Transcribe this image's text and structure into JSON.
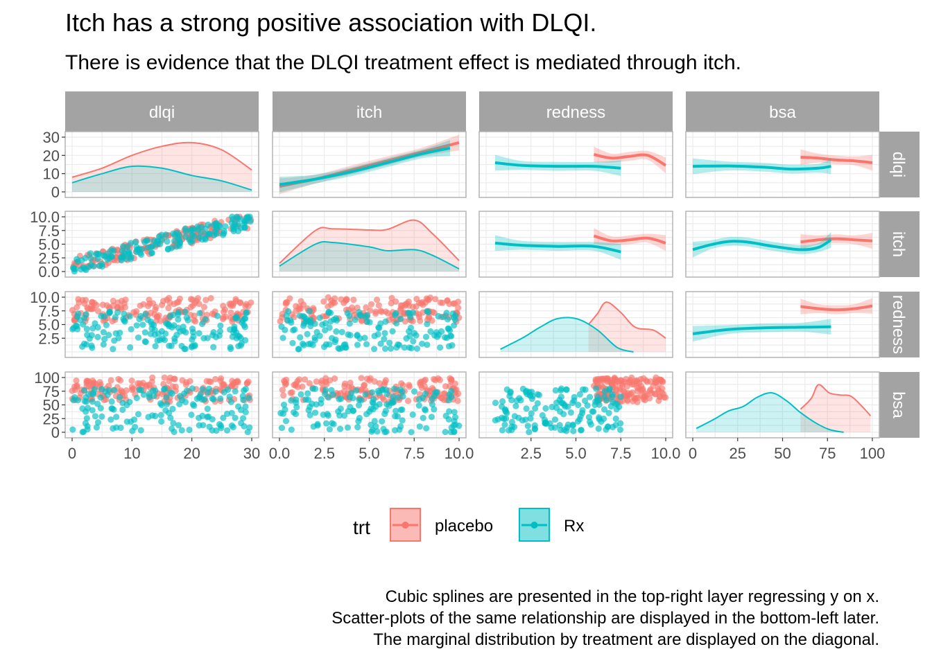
{
  "title": "Itch has a strong positive association with DLQI.",
  "subtitle": "There is evidence that the DLQI treatment effect is mediated through itch.",
  "caption": [
    "Cubic splines are presented in the top-right layer regressing y on x.",
    "Scatter-plots of the same relationship are displayed in the bottom-left later.",
    "The marginal distribution by treatment are displayed on the diagonal."
  ],
  "colors": {
    "placebo": "#F8766D",
    "Rx": "#00BFC4",
    "strip": "#A3A3A3",
    "grid": "#EBEBEB",
    "border": "#B3B3B3"
  },
  "legend": {
    "title": "trt",
    "items": [
      "placebo",
      "Rx"
    ],
    "position": "bottom"
  },
  "chart_data": {
    "type": "scatter",
    "layout": "pairs-matrix",
    "variables": [
      "dlqi",
      "itch",
      "redness",
      "bsa"
    ],
    "groups": [
      "placebo",
      "Rx"
    ],
    "axes": {
      "dlqi": {
        "lim": [
          0,
          30
        ],
        "ticks": [
          0,
          10,
          20,
          30
        ]
      },
      "itch": {
        "lim": [
          0,
          10
        ],
        "ticks": [
          0.0,
          2.5,
          5.0,
          7.5,
          10.0
        ],
        "tick_labels": [
          "0.0",
          "2.5",
          "5.0",
          "7.5",
          "10.0"
        ]
      },
      "redness": {
        "lim": [
          0,
          10
        ],
        "ticks": [
          2.5,
          5.0,
          7.5,
          10.0
        ],
        "tick_labels": [
          "2.5",
          "5.0",
          "7.5",
          "10.0"
        ]
      },
      "bsa": {
        "lim": [
          0,
          100
        ],
        "ticks": [
          0,
          25,
          50,
          75,
          100
        ]
      }
    },
    "diagonal_density_ylim": {
      "dlqi": [
        0,
        30
      ],
      "itch": [
        0,
        10
      ],
      "redness": [
        0,
        10
      ],
      "bsa": [
        0,
        100
      ]
    },
    "densities": {
      "dlqi": {
        "placebo": [
          [
            0,
            8
          ],
          [
            5,
            13
          ],
          [
            10,
            20
          ],
          [
            15,
            25
          ],
          [
            20,
            27
          ],
          [
            25,
            23
          ],
          [
            30,
            12
          ]
        ],
        "Rx": [
          [
            0,
            5
          ],
          [
            5,
            10
          ],
          [
            10,
            14
          ],
          [
            15,
            13
          ],
          [
            20,
            9
          ],
          [
            25,
            6
          ],
          [
            30,
            1
          ]
        ]
      },
      "itch": {
        "placebo": [
          [
            0,
            1.5
          ],
          [
            2,
            7.5
          ],
          [
            3,
            7.8
          ],
          [
            5,
            7.6
          ],
          [
            6,
            7.7
          ],
          [
            7.5,
            9.4
          ],
          [
            8.5,
            7
          ],
          [
            10,
            2
          ]
        ],
        "Rx": [
          [
            0,
            1
          ],
          [
            2,
            5
          ],
          [
            3,
            5.3
          ],
          [
            5,
            4.5
          ],
          [
            6,
            3.8
          ],
          [
            7.5,
            4
          ],
          [
            8.5,
            3
          ],
          [
            10,
            0.5
          ]
        ]
      },
      "redness": {
        "placebo": [
          [
            5.7,
            5
          ],
          [
            6.2,
            7
          ],
          [
            6.7,
            9.1
          ],
          [
            7.5,
            7.2
          ],
          [
            8.3,
            4.5
          ],
          [
            9.3,
            4
          ],
          [
            10,
            2.5
          ]
        ],
        "Rx": [
          [
            0.8,
            0.5
          ],
          [
            2,
            2.5
          ],
          [
            3,
            4.5
          ],
          [
            4,
            6.1
          ],
          [
            5.1,
            6
          ],
          [
            6.2,
            4
          ],
          [
            7.3,
            0.8
          ],
          [
            8.2,
            0
          ]
        ]
      },
      "bsa": {
        "placebo": [
          [
            60,
            42
          ],
          [
            66,
            62
          ],
          [
            70,
            87
          ],
          [
            76,
            72
          ],
          [
            82,
            68
          ],
          [
            88,
            66
          ],
          [
            94,
            48
          ],
          [
            99,
            30
          ]
        ],
        "Rx": [
          [
            2,
            7
          ],
          [
            12,
            24
          ],
          [
            20,
            39
          ],
          [
            28,
            47
          ],
          [
            36,
            64
          ],
          [
            44,
            72
          ],
          [
            52,
            58
          ],
          [
            60,
            36
          ],
          [
            68,
            18
          ],
          [
            76,
            5
          ],
          [
            84,
            0
          ]
        ]
      }
    },
    "splines": {
      "dlqi~itch": {
        "placebo": [
          [
            0,
            3
          ],
          [
            2,
            7
          ],
          [
            4,
            12
          ],
          [
            6,
            17
          ],
          [
            8,
            22
          ],
          [
            10,
            27
          ]
        ],
        "Rx": [
          [
            0,
            4
          ],
          [
            2,
            7
          ],
          [
            4,
            11
          ],
          [
            6,
            16
          ],
          [
            8,
            21
          ],
          [
            9.5,
            24
          ]
        ]
      },
      "dlqi~redness": {
        "placebo": [
          [
            6,
            20.5
          ],
          [
            7,
            18.5
          ],
          [
            8,
            19.5
          ],
          [
            9,
            20
          ],
          [
            10,
            14.5
          ]
        ],
        "Rx": [
          [
            0.5,
            16
          ],
          [
            2,
            14.5
          ],
          [
            4,
            14
          ],
          [
            6,
            14
          ],
          [
            7.5,
            13
          ]
        ]
      },
      "dlqi~bsa": {
        "placebo": [
          [
            60,
            19
          ],
          [
            70,
            18.5
          ],
          [
            80,
            17.5
          ],
          [
            90,
            17
          ],
          [
            100,
            16
          ]
        ],
        "Rx": [
          [
            0,
            14
          ],
          [
            20,
            14.2
          ],
          [
            40,
            13.5
          ],
          [
            55,
            12.5
          ],
          [
            70,
            13
          ],
          [
            77,
            14
          ]
        ]
      },
      "itch~redness": {
        "placebo": [
          [
            6,
            6.5
          ],
          [
            7,
            5.6
          ],
          [
            8,
            5.8
          ],
          [
            9,
            6.1
          ],
          [
            10,
            5.2
          ]
        ],
        "Rx": [
          [
            0.5,
            5.2
          ],
          [
            2,
            4.8
          ],
          [
            4,
            4.6
          ],
          [
            6,
            4.6
          ],
          [
            7.5,
            3.6
          ]
        ]
      },
      "itch~bsa": {
        "placebo": [
          [
            60,
            5.4
          ],
          [
            70,
            5.8
          ],
          [
            80,
            6
          ],
          [
            90,
            5.8
          ],
          [
            100,
            5.6
          ]
        ],
        "Rx": [
          [
            0,
            4
          ],
          [
            10,
            4.9
          ],
          [
            20,
            5.5
          ],
          [
            30,
            5.4
          ],
          [
            45,
            4.6
          ],
          [
            60,
            4
          ],
          [
            70,
            4.4
          ],
          [
            77,
            5.8
          ]
        ]
      },
      "redness~bsa": {
        "placebo": [
          [
            60,
            8.3
          ],
          [
            70,
            7.9
          ],
          [
            80,
            7.7
          ],
          [
            90,
            7.9
          ],
          [
            100,
            8.4
          ]
        ],
        "Rx": [
          [
            0,
            3.3
          ],
          [
            20,
            4.1
          ],
          [
            40,
            4.4
          ],
          [
            60,
            4.5
          ],
          [
            77,
            4.6
          ]
        ]
      }
    },
    "scatter_summary": {
      "itch~dlqi": {
        "placebo": {
          "n": 150,
          "x": [
            0,
            30
          ],
          "y": [
            1,
            10
          ]
        },
        "Rx": {
          "n": 150,
          "x": [
            0,
            30
          ],
          "y": [
            0,
            10
          ]
        }
      },
      "redness~dlqi": {
        "placebo": {
          "n": 150,
          "x": [
            0,
            30
          ],
          "y": [
            5.5,
            10
          ]
        },
        "Rx": {
          "n": 150,
          "x": [
            0,
            30
          ],
          "y": [
            0.5,
            7.5
          ]
        }
      },
      "redness~itch": {
        "placebo": {
          "n": 150,
          "x": [
            0,
            10
          ],
          "y": [
            5.5,
            10
          ]
        },
        "Rx": {
          "n": 150,
          "x": [
            0,
            10
          ],
          "y": [
            0.5,
            7.5
          ]
        }
      },
      "bsa~dlqi": {
        "placebo": {
          "n": 150,
          "x": [
            0,
            30
          ],
          "y": [
            55,
            100
          ]
        },
        "Rx": {
          "n": 150,
          "x": [
            0,
            30
          ],
          "y": [
            0,
            80
          ]
        }
      },
      "bsa~itch": {
        "placebo": {
          "n": 150,
          "x": [
            0,
            10
          ],
          "y": [
            55,
            100
          ]
        },
        "Rx": {
          "n": 150,
          "x": [
            0,
            10
          ],
          "y": [
            0,
            80
          ]
        }
      },
      "bsa~redness": {
        "placebo": {
          "n": 150,
          "x": [
            6,
            10
          ],
          "y": [
            55,
            100
          ]
        },
        "Rx": {
          "n": 150,
          "x": [
            0.5,
            7.5
          ],
          "y": [
            0,
            80
          ]
        }
      }
    }
  }
}
